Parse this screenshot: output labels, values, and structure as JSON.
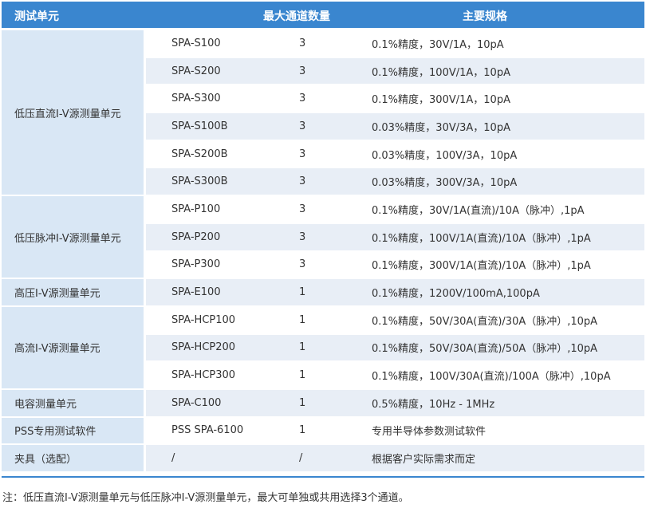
{
  "header": {
    "unit": "测试单元",
    "channels": "最大通道数量",
    "spec": "主要规格"
  },
  "groups": [
    {
      "name": "低压直流I-V源测量单元",
      "rows": [
        {
          "model": "SPA-S100",
          "channels": "3",
          "spec": "0.1%精度，30V/1A，10pA"
        },
        {
          "model": "SPA-S200",
          "channels": "3",
          "spec": "0.1%精度，100V/1A，10pA"
        },
        {
          "model": "SPA-S300",
          "channels": "3",
          "spec": "0.1%精度，300V/1A，10pA"
        },
        {
          "model": "SPA-S100B",
          "channels": "3",
          "spec": "0.03%精度，30V/3A，10pA"
        },
        {
          "model": "SPA-S200B",
          "channels": "3",
          "spec": "0.03%精度，100V/3A，10pA"
        },
        {
          "model": "SPA-S300B",
          "channels": "3",
          "spec": "0.03%精度，300V/3A，10pA"
        }
      ]
    },
    {
      "name": "低压脉冲I-V源测量单元",
      "rows": [
        {
          "model": "SPA-P100",
          "channels": "3",
          "spec": "0.1%精度，30V/1A(直流)/10A（脉冲）,1pA"
        },
        {
          "model": "SPA-P200",
          "channels": "3",
          "spec": "0.1%精度，100V/1A(直流)/10A（脉冲）,1pA"
        },
        {
          "model": "SPA-P300",
          "channels": "3",
          "spec": "0.1%精度，300V/1A(直流)/10A（脉冲）,1pA"
        }
      ]
    },
    {
      "name": "高压I-V源测量单元",
      "rows": [
        {
          "model": "SPA-E100",
          "channels": "1",
          "spec": "0.1%精度，1200V/100mA,100pA"
        }
      ]
    },
    {
      "name": "高流I-V源测量单元",
      "rows": [
        {
          "model": "SPA-HCP100",
          "channels": "1",
          "spec": "0.1%精度，50V/30A(直流)/30A（脉冲）,10pA"
        },
        {
          "model": "SPA-HCP200",
          "channels": "1",
          "spec": "0.1%精度，50V/30A(直流)/50A（脉冲）,10pA"
        },
        {
          "model": "SPA-HCP300",
          "channels": "1",
          "spec": "0.1%精度，100V/30A(直流)/100A（脉冲）,10pA"
        }
      ]
    },
    {
      "name": "电容测量单元",
      "rows": [
        {
          "model": "SPA-C100",
          "channels": "1",
          "spec": "0.5%精度，10Hz - 1MHz"
        }
      ]
    },
    {
      "name": "PSS专用测试软件",
      "rows": [
        {
          "model": "PSS SPA-6100",
          "channels": "1",
          "spec": "专用半导体参数测试软件"
        }
      ]
    },
    {
      "name": "夹具（选配）",
      "rows": [
        {
          "model": "/",
          "channels": "/",
          "spec": "根据客户实际需求而定"
        }
      ]
    }
  ],
  "note": "注：低压直流I-V源测量单元与低压脉冲I-V源测量单元，最大可单独或共用选择3个通道。",
  "colors": {
    "header": "#3a86cf",
    "group_bg": "#d9e7f5",
    "alt_row": "#e8eef6"
  }
}
